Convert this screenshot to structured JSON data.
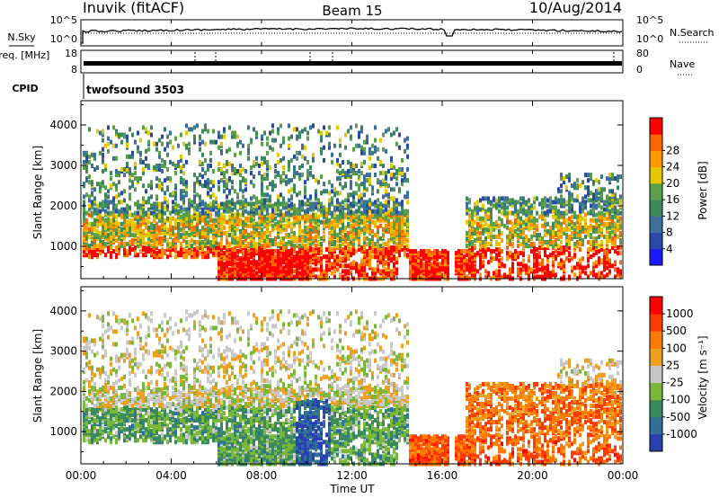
{
  "header": {
    "station": "Inuvik (fitACF)",
    "beam": "Beam 15",
    "date": "10/Aug/2014"
  },
  "colors": {
    "power_scale": [
      "#1a1aff",
      "#2a49a8",
      "#3c6f9a",
      "#3f8a5a",
      "#5aa04a",
      "#e6c800",
      "#ff9900",
      "#ff6600",
      "#ff0000"
    ],
    "velocity_scale": [
      "#2a3fb0",
      "#2f6f9a",
      "#3a8a5e",
      "#7ab83a",
      "#c8c8c8",
      "#f0a020",
      "#ff7a00",
      "#ff3c00",
      "#ff0000"
    ]
  },
  "chart_data": [
    {
      "type": "line",
      "title": "",
      "left_label": "N.Sky",
      "right_label": "N.Search",
      "left_ticks": [
        "10^5",
        "10^0"
      ],
      "right_ticks": [
        "10^5",
        "10^0"
      ]
    },
    {
      "type": "line",
      "left_label": "Freq. [MHz]",
      "right_label": "Nave",
      "left_ticks": [
        "8",
        "18"
      ],
      "right_ticks": [
        "80",
        "0"
      ]
    },
    {
      "type": "table",
      "label": "CPID",
      "value": "twofsound 3503"
    },
    {
      "type": "heatmap",
      "ylabel": "Slant Range [km]",
      "yticks": [
        1000,
        2000,
        3000,
        4000
      ],
      "ylim": [
        200,
        4600
      ],
      "colorbar_label": "Power [dB]",
      "colorbar_ticks": [
        4,
        8,
        12,
        16,
        20,
        24,
        28
      ]
    },
    {
      "type": "heatmap",
      "ylabel": "Slant Range [km]",
      "yticks": [
        1000,
        2000,
        3000,
        4000
      ],
      "ylim": [
        200,
        4600
      ],
      "xlabel": "Time UT",
      "xticks": [
        "00:00",
        "04:00",
        "08:00",
        "12:00",
        "16:00",
        "20:00",
        "00:00"
      ],
      "colorbar_label": "Velocity [m s⁻¹]",
      "colorbar_ticks": [
        1000,
        500,
        100,
        25,
        -25,
        -100,
        -500,
        -1000
      ]
    }
  ]
}
